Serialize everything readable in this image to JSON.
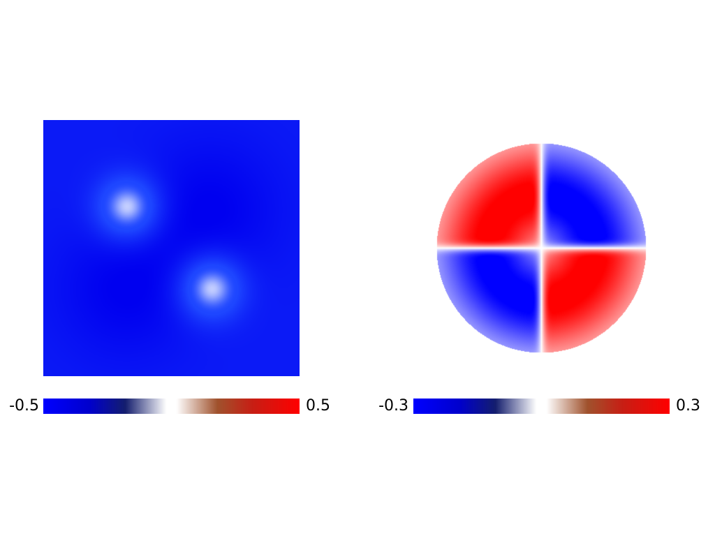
{
  "colors": {
    "negative": "#0000ff",
    "zero": "#ffffff",
    "positive": "#ff0000",
    "colormap_mid_brown": "#a0522d"
  },
  "chart_data": [
    {
      "type": "heatmap",
      "title": "",
      "xlabel": "",
      "ylabel": "",
      "colorbar": {
        "min_label": "-0.5",
        "max_label": "0.5",
        "vmin": -0.5,
        "vmax": 0.5,
        "orientation": "horizontal",
        "placement": "bottom"
      },
      "field": {
        "background_value": -0.4,
        "features": [
          {
            "quadrant": "top-left",
            "peak_value": 0.0
          },
          {
            "quadrant": "top-right",
            "peak_value": -0.5
          },
          {
            "quadrant": "bottom-left",
            "peak_value": -0.5
          },
          {
            "quadrant": "bottom-right",
            "peak_value": 0.0
          }
        ]
      },
      "grid": false
    },
    {
      "type": "heatmap",
      "title": "",
      "xlabel": "",
      "ylabel": "",
      "colorbar": {
        "min_label": "-0.3",
        "max_label": "0.3",
        "vmin": -0.3,
        "vmax": 0.3,
        "orientation": "horizontal",
        "placement": "bottom"
      },
      "field": {
        "background_value": 0.0,
        "features": [
          {
            "quadrant": "top-left",
            "peak_value": 0.3
          },
          {
            "quadrant": "top-right",
            "peak_value": -0.3
          },
          {
            "quadrant": "bottom-left",
            "peak_value": -0.3
          },
          {
            "quadrant": "bottom-right",
            "peak_value": 0.3
          }
        ]
      },
      "grid": false
    }
  ]
}
